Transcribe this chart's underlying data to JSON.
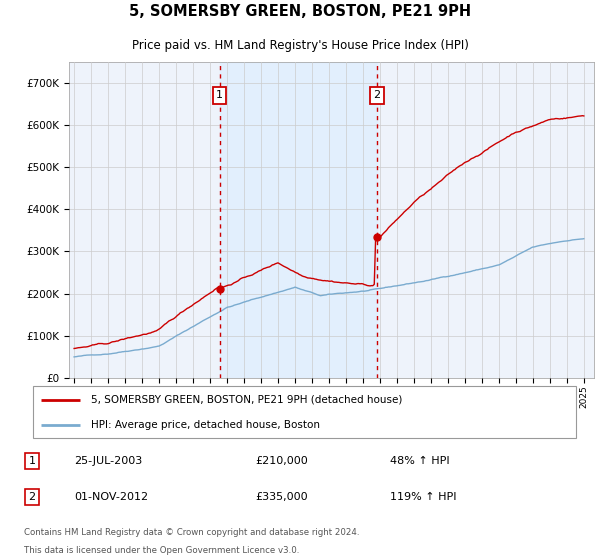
{
  "title": "5, SOMERSBY GREEN, BOSTON, PE21 9PH",
  "subtitle": "Price paid vs. HM Land Registry's House Price Index (HPI)",
  "legend_line1": "5, SOMERSBY GREEN, BOSTON, PE21 9PH (detached house)",
  "legend_line2": "HPI: Average price, detached house, Boston",
  "marker1_date": "25-JUL-2003",
  "marker1_price": 210000,
  "marker1_label": "48% ↑ HPI",
  "marker2_date": "01-NOV-2012",
  "marker2_price": 335000,
  "marker2_label": "119% ↑ HPI",
  "footer1": "Contains HM Land Registry data © Crown copyright and database right 2024.",
  "footer2": "This data is licensed under the Open Government Licence v3.0.",
  "red_color": "#cc0000",
  "blue_color": "#7aabcf",
  "shade_color": "#ddeeff",
  "background_color": "#ffffff",
  "plot_bg_color": "#eef3fb",
  "grid_color": "#cccccc",
  "ylim": [
    0,
    750000
  ],
  "yticks": [
    0,
    100000,
    200000,
    300000,
    400000,
    500000,
    600000,
    700000
  ],
  "sale1_year": 2003.56,
  "sale2_year": 2012.83
}
